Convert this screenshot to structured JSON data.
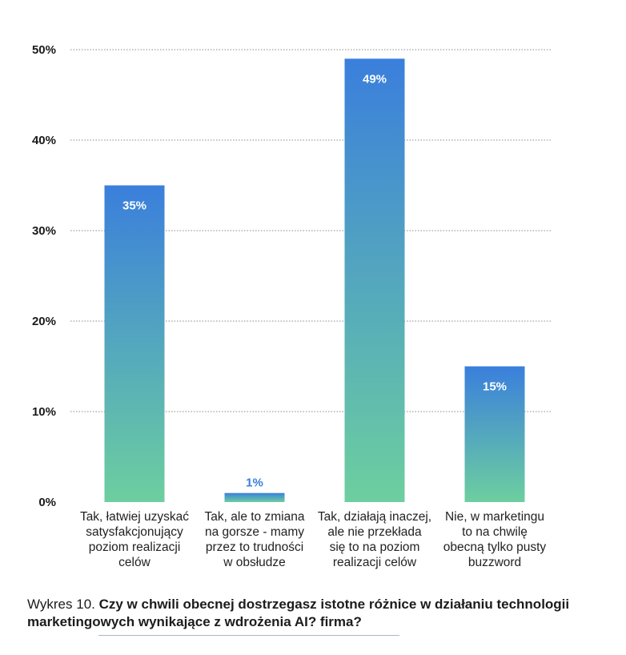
{
  "chart_data": {
    "type": "bar",
    "categories": [
      "Tak, łatwiej uzyskać satysfakcjonujący poziom realizacji celów",
      "Tak, ale to zmiana na gorsze - mamy przez to trudności w obsłudze",
      "Tak, działają inaczej, ale nie przekłada się to na poziom realizacji celów",
      "Nie, w marketingu to na chwilę obecną tylko pusty buzzword"
    ],
    "category_lines": [
      [
        "Tak, łatwiej uzyskać",
        "satysfakcjonujący",
        "poziom realizacji",
        "celów"
      ],
      [
        "Tak, ale to zmiana",
        "na gorsze - mamy",
        "przez to trudności",
        "w obsłudze"
      ],
      [
        "Tak, działają inaczej,",
        "ale nie przekłada",
        "się to na poziom",
        "realizacji celów"
      ],
      [
        "Nie, w marketingu",
        "to na chwilę",
        "obecną tylko pusty",
        "buzzword"
      ]
    ],
    "values": [
      35,
      1,
      49,
      15
    ],
    "data_labels": [
      "35%",
      "1%",
      "49%",
      "15%"
    ],
    "ylim": [
      0,
      50
    ],
    "yticks": [
      0,
      10,
      20,
      30,
      40,
      50
    ],
    "ytick_labels": [
      "0%",
      "10%",
      "20%",
      "30%",
      "40%",
      "50%"
    ],
    "grid": true,
    "colors": {
      "bar_top": "#3a7fdc",
      "bar_bottom": "#6dcf9f",
      "grid": "#8a8a8a",
      "small_value_label": "#3a7fdc"
    }
  },
  "caption": {
    "prefix": "Wykres 10. ",
    "title": "Czy w chwili obecnej dostrzegasz istotne różnice w działaniu technologii marketingowych wynikające z wdrożenia AI? firma?"
  }
}
